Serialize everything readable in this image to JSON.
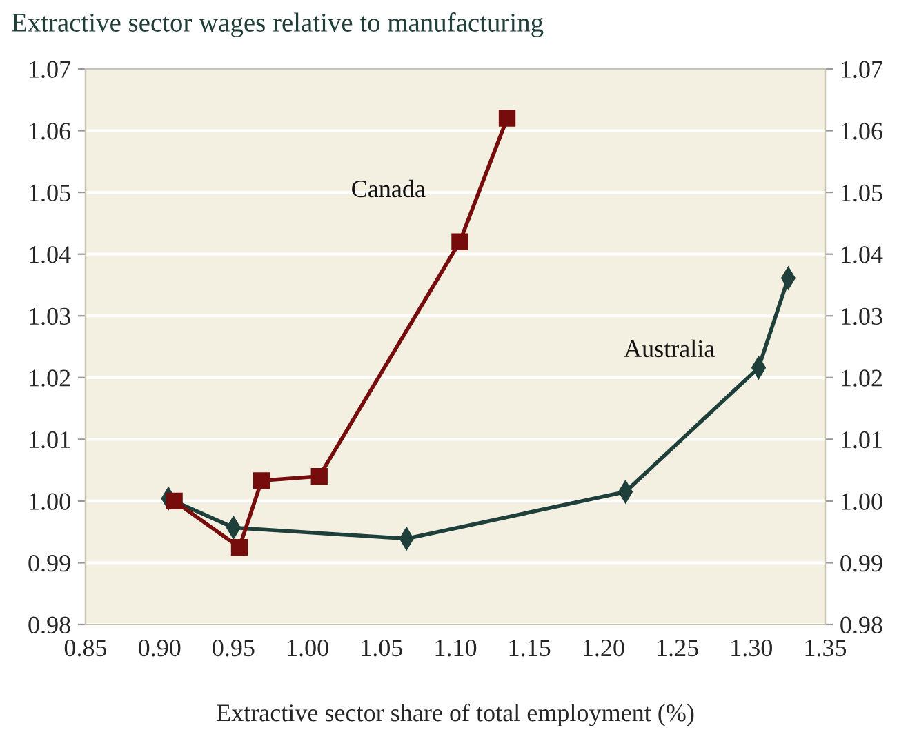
{
  "chart_data": {
    "type": "line",
    "title": "Extractive sector wages relative to manufacturing",
    "xlabel": "Extractive sector share of total employment (%)",
    "series": [
      {
        "name": "Canada",
        "color": "#760c0c",
        "marker": "square",
        "x": [
          0.91,
          0.954,
          0.969,
          1.008,
          1.103,
          1.135
        ],
        "values": [
          1.0,
          0.9925,
          1.0033,
          1.004,
          1.042,
          1.062
        ]
      },
      {
        "name": "Australia",
        "color": "#1f3f3a",
        "marker": "diamond",
        "x": [
          0.906,
          0.95,
          1.067,
          1.215,
          1.305,
          1.325
        ],
        "values": [
          1.0004,
          0.9957,
          0.9939,
          1.0015,
          1.0216,
          1.0361
        ]
      }
    ],
    "xlim": [
      0.85,
      1.35
    ],
    "xticks": [
      {
        "value": 0.85,
        "label": "0.85"
      },
      {
        "value": 0.9,
        "label": "0.90"
      },
      {
        "value": 0.95,
        "label": "0.95"
      },
      {
        "value": 1.0,
        "label": "1.00"
      },
      {
        "value": 1.05,
        "label": "1.05"
      },
      {
        "value": 1.1,
        "label": "1.10"
      },
      {
        "value": 1.15,
        "label": "1.15"
      },
      {
        "value": 1.2,
        "label": "1.20"
      },
      {
        "value": 1.25,
        "label": "1.25"
      },
      {
        "value": 1.3,
        "label": "1.30"
      },
      {
        "value": 1.35,
        "label": "1.35"
      }
    ],
    "ylim": [
      0.98,
      1.07
    ],
    "yticks": [
      {
        "value": 0.98,
        "label": "0.98"
      },
      {
        "value": 0.99,
        "label": "0.99"
      },
      {
        "value": 1.0,
        "label": "1.00"
      },
      {
        "value": 1.01,
        "label": "1.01"
      },
      {
        "value": 1.02,
        "label": "1.02"
      },
      {
        "value": 1.03,
        "label": "1.03"
      },
      {
        "value": 1.04,
        "label": "1.04"
      },
      {
        "value": 1.05,
        "label": "1.05"
      },
      {
        "value": 1.06,
        "label": "1.06"
      },
      {
        "value": 1.07,
        "label": "1.07"
      }
    ],
    "y2lim": [
      0.98,
      1.07
    ],
    "y2ticks": [
      {
        "value": 0.98,
        "label": "0.98"
      },
      {
        "value": 0.99,
        "label": "0.99"
      },
      {
        "value": 1.0,
        "label": "1.00"
      },
      {
        "value": 1.01,
        "label": "1.01"
      },
      {
        "value": 1.02,
        "label": "1.02"
      },
      {
        "value": 1.03,
        "label": "1.03"
      },
      {
        "value": 1.04,
        "label": "1.04"
      },
      {
        "value": 1.05,
        "label": "1.05"
      },
      {
        "value": 1.06,
        "label": "1.06"
      },
      {
        "value": 1.07,
        "label": "1.07"
      }
    ],
    "grid": "y",
    "line_style": "solid"
  }
}
